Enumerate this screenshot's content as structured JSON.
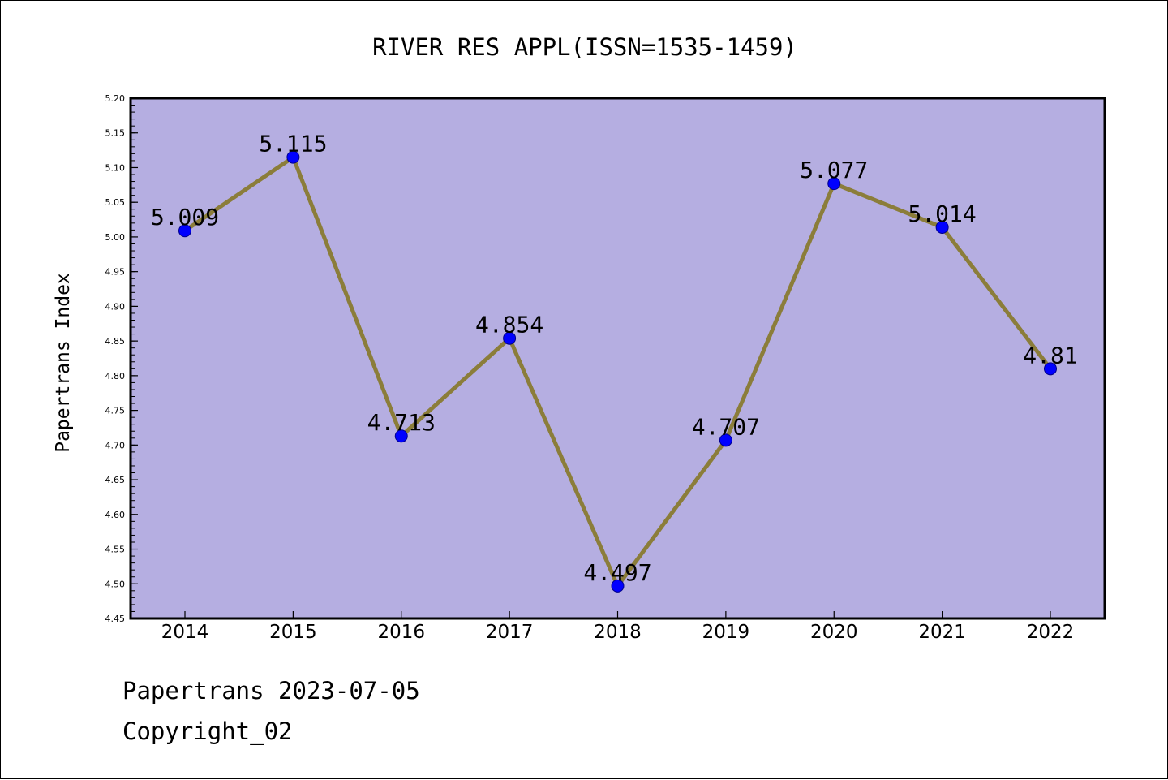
{
  "chart_data": {
    "type": "line",
    "title": "RIVER RES APPL(ISSN=1535-1459)",
    "xlabel": "",
    "ylabel": "Papertrans Index",
    "categories": [
      "2014",
      "2015",
      "2016",
      "2017",
      "2018",
      "2019",
      "2020",
      "2021",
      "2022"
    ],
    "series": [
      {
        "values": [
          5.009,
          5.115,
          4.713,
          4.854,
          4.497,
          4.707,
          5.077,
          5.014,
          4.81
        ]
      }
    ],
    "data_labels": [
      "5.009",
      "5.115",
      "4.713",
      "4.854",
      "4.497",
      "4.707",
      "5.077",
      "5.014",
      "4.81"
    ],
    "ylim": [
      4.45,
      5.2
    ],
    "yticks": [
      "4.45",
      "4.50",
      "4.55",
      "4.60",
      "4.65",
      "4.70",
      "4.75",
      "4.80",
      "4.85",
      "4.90",
      "4.95",
      "5.00",
      "5.05",
      "5.10",
      "5.15",
      "5.20"
    ],
    "grid": false,
    "legend": "none",
    "colors": {
      "plot_background": "#b5aee1",
      "line": "#8b7d3a",
      "marker": "#0000ff",
      "marker_edge": "#00008b"
    }
  },
  "footer": {
    "line1": "Papertrans 2023-07-05",
    "line2": "Copyright_02"
  }
}
